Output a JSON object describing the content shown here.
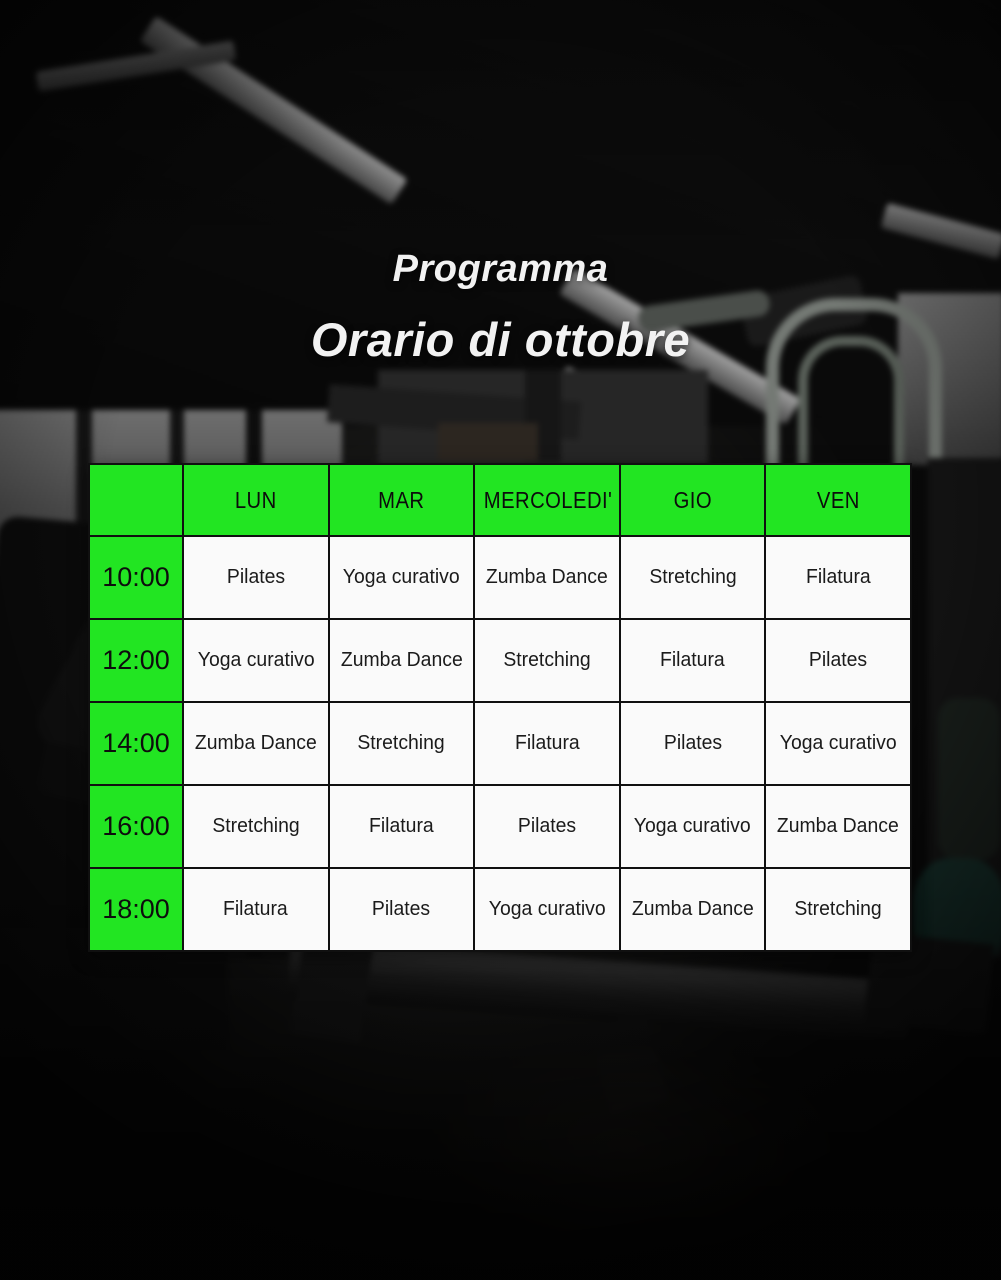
{
  "header": {
    "subtitle": "Programma",
    "title": "Orario di ottobre"
  },
  "schedule": {
    "days": [
      "LUN",
      "MAR",
      "MERCOLEDI'",
      "GIO",
      "VEN"
    ],
    "rows": [
      {
        "time": "10:00",
        "classes": [
          "Pilates",
          "Yoga curativo",
          "Zumba Dance",
          "Stretching",
          "Filatura"
        ]
      },
      {
        "time": "12:00",
        "classes": [
          "Yoga curativo",
          "Zumba Dance",
          "Stretching",
          "Filatura",
          "Pilates"
        ]
      },
      {
        "time": "14:00",
        "classes": [
          "Zumba Dance",
          "Stretching",
          "Filatura",
          "Pilates",
          "Yoga curativo"
        ]
      },
      {
        "time": "16:00",
        "classes": [
          "Stretching",
          "Filatura",
          "Pilates",
          "Yoga curativo",
          "Zumba Dance"
        ]
      },
      {
        "time": "18:00",
        "classes": [
          "Filatura",
          "Pilates",
          "Yoga curativo",
          "Zumba Dance",
          "Stretching"
        ]
      }
    ]
  },
  "colors": {
    "accent_green": "#22e522",
    "cell_white": "#fafafa",
    "grid_black": "#101010",
    "title_white": "#f2f2f2",
    "background_black": "#0a0a0a"
  }
}
